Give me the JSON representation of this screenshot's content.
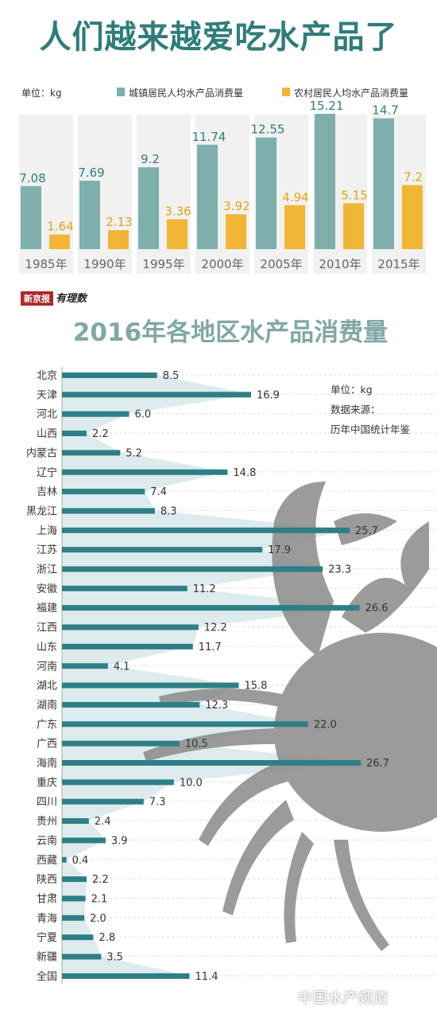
{
  "title": "人们越来越爱吃水产品了",
  "masthead": {
    "paper": "新京报",
    "brand": "有理数"
  },
  "watermark": "中国水产频道",
  "colors": {
    "urban": "#7eafad",
    "rural": "#f2b636",
    "bar": "#2e7e86",
    "area": "#d4e6ea",
    "title": "#2f7d7a"
  },
  "chart_data": [
    {
      "type": "bar",
      "unit_label": "单位：kg",
      "categories": [
        "1985年",
        "1990年",
        "1995年",
        "2000年",
        "2005年",
        "2010年",
        "2015年"
      ],
      "series": [
        {
          "name": "城镇居民人均水产品消费量",
          "values": [
            7.08,
            7.69,
            9.2,
            11.74,
            12.55,
            15.21,
            14.7
          ]
        },
        {
          "name": "农村居民人均水产品消费量",
          "values": [
            1.64,
            2.13,
            3.36,
            3.92,
            4.94,
            5.15,
            7.2
          ]
        }
      ],
      "ylim": [
        0,
        17
      ],
      "legend_position": "top-right"
    },
    {
      "type": "bar",
      "orientation": "horizontal",
      "title": "2016年各地区水产品消费量",
      "unit_label": "单位：kg",
      "source_label": "数据来源：",
      "source": "历年中国统计年鉴",
      "categories": [
        "北京",
        "天津",
        "河北",
        "山西",
        "内蒙古",
        "辽宁",
        "吉林",
        "黑龙江",
        "上海",
        "江苏",
        "浙江",
        "安徽",
        "福建",
        "江西",
        "山东",
        "河南",
        "湖北",
        "湖南",
        "广东",
        "广西",
        "海南",
        "重庆",
        "四川",
        "贵州",
        "云南",
        "西藏",
        "陕西",
        "甘肃",
        "青海",
        "宁夏",
        "新疆",
        "全国"
      ],
      "labels": [
        "8.5",
        "16.9",
        "6.0",
        "2.2",
        "5.2",
        "14.8",
        "7.4",
        "8.3",
        "25.7",
        "17.9",
        "23.3",
        "11.2",
        "26.6",
        "12.2",
        "11.7",
        "4.1",
        "15.8",
        "12.3",
        "22.0",
        "10.5",
        "26.7",
        "10.0",
        "7.3",
        "2.4",
        "3.9",
        "0.4",
        "2.2",
        "2.1",
        "2.0",
        "2.8",
        "3.5",
        "11.4"
      ],
      "values": [
        8.5,
        16.9,
        6.0,
        2.2,
        5.2,
        14.8,
        7.4,
        8.3,
        25.7,
        17.9,
        23.3,
        11.2,
        26.6,
        12.2,
        11.7,
        4.1,
        15.8,
        12.3,
        22.0,
        10.5,
        26.7,
        10.0,
        7.3,
        2.4,
        3.9,
        0.4,
        2.2,
        2.1,
        2.0,
        2.8,
        3.5,
        11.4
      ],
      "xlim": [
        0,
        26.7
      ]
    }
  ]
}
